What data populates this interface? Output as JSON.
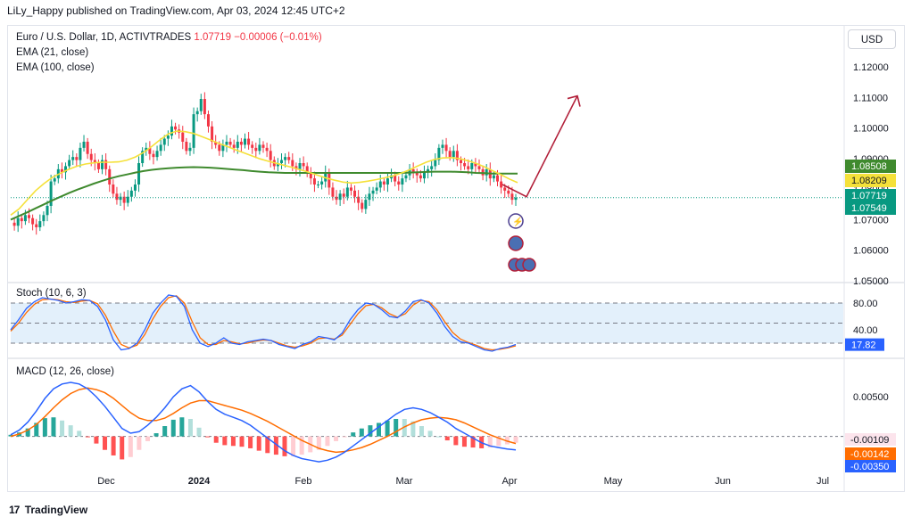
{
  "header": {
    "publisher": "LiLy_Happy published on TradingView.com, Apr 03, 2024 12:45 UTC+2"
  },
  "legend": {
    "symbol": "Euro / U.S. Dollar, 1D, ACTIVTRADES",
    "last": "1.07719",
    "change": "−0.00006 (−0.01%)",
    "ema21": "EMA (21, close)",
    "ema100": "EMA (100, close)",
    "stoch": "Stoch (10, 6, 3)",
    "macd": "MACD (12, 26, close)"
  },
  "currency_button": "USD",
  "footer": {
    "brand": "TradingView",
    "logo": "17"
  },
  "colors": {
    "up": "#089981",
    "down": "#f23645",
    "ema21": "#f5e13a",
    "ema100": "#3f8a2e",
    "stoch_k": "#2962ff",
    "stoch_d": "#ff6d00",
    "macd": "#2962ff",
    "signal": "#ff6d00",
    "arrow": "#b2203a"
  },
  "chart_data": [
    {
      "type": "candlestick",
      "title": "Euro / U.S. Dollar, 1D, ACTIVTRADES",
      "x_labels": [
        "Dec",
        "2024",
        "Feb",
        "Mar",
        "Apr",
        "May",
        "Jun",
        "Jul"
      ],
      "y_ticks": [
        "1.12000",
        "1.11000",
        "1.10000",
        "1.09000",
        "1.08000",
        "1.07000",
        "1.06000",
        "1.05000"
      ],
      "ylim": [
        1.05,
        1.12
      ],
      "price_labels": [
        {
          "text": "1.08508",
          "value": 1.08508,
          "color": "#3f8a2e"
        },
        {
          "text": "1.08209",
          "value": 1.08209,
          "color": "#f5e13a"
        },
        {
          "text": "1.07719",
          "value": 1.07719,
          "color": "#089981"
        },
        {
          "text": "1.07549",
          "value": 1.07549,
          "color": "#089981"
        }
      ],
      "close_series": [
        1.069,
        1.068,
        1.0705,
        1.0695,
        1.0715,
        1.0705,
        1.0685,
        1.0675,
        1.0695,
        1.0715,
        1.0745,
        1.0825,
        1.0835,
        1.0865,
        1.0855,
        1.0875,
        1.0895,
        1.0905,
        1.0895,
        1.0935,
        1.0955,
        1.0915,
        1.0895,
        1.0885,
        1.0865,
        1.0895,
        1.0865,
        1.0815,
        1.0785,
        1.0765,
        1.0775,
        1.0755,
        1.0775,
        1.0795,
        1.0815,
        1.0885,
        1.0925,
        1.0935,
        1.0915,
        1.0905,
        1.0925,
        1.0945,
        1.0965,
        1.0975,
        1.1005,
        1.0995,
        1.0985,
        1.0955,
        1.0925,
        1.0935,
        1.1045,
        1.1055,
        1.1095,
        1.1045,
        1.1005,
        1.0955,
        1.0945,
        1.0925,
        1.0945,
        1.0955,
        1.0945,
        1.0935,
        1.0955,
        1.0945,
        1.0965,
        1.0945,
        1.0935,
        1.0925,
        1.0945,
        1.0935,
        1.0925,
        1.0895,
        1.0875,
        1.0885,
        1.0895,
        1.0905,
        1.0895,
        1.0875,
        1.0865,
        1.0885,
        1.0875,
        1.0855,
        1.0835,
        1.0815,
        1.0815,
        1.0825,
        1.0855,
        1.0805,
        1.0775,
        1.0765,
        1.0785,
        1.0775,
        1.0805,
        1.0795,
        1.0775,
        1.0755,
        1.0735,
        1.0765,
        1.0785,
        1.0795,
        1.0805,
        1.0825,
        1.0815,
        1.0835,
        1.0845,
        1.0825,
        1.0815,
        1.0835,
        1.0845,
        1.0865,
        1.0855,
        1.0845,
        1.0835,
        1.0855,
        1.0865,
        1.0875,
        1.0895,
        1.0935,
        1.0945,
        1.0925,
        1.0905,
        1.0925,
        1.0895,
        1.0885,
        1.0875,
        1.0865,
        1.0885,
        1.0875,
        1.0865,
        1.0845,
        1.0865,
        1.0835,
        1.0845,
        1.0825,
        1.0805,
        1.0795,
        1.0785,
        1.0765,
        1.0772
      ],
      "ema21": [
        1.0715,
        1.0735,
        1.0765,
        1.0795,
        1.0818,
        1.0838,
        1.0852,
        1.0865,
        1.0875,
        1.0882,
        1.0886,
        1.0888,
        1.0888,
        1.0889,
        1.0895,
        1.0905,
        1.092,
        1.094,
        1.0962,
        1.0981,
        1.099,
        1.0988,
        1.0982,
        1.0972,
        1.0961,
        1.095,
        1.094,
        1.0929,
        1.0919,
        1.0909,
        1.0899,
        1.0891,
        1.0884,
        1.0877,
        1.087,
        1.0862,
        1.0854,
        1.0845,
        1.0836,
        1.0829,
        1.0823,
        1.082,
        1.0822,
        1.0826,
        1.0831,
        1.0837,
        1.0843,
        1.0852,
        1.0863,
        1.0876,
        1.0888,
        1.0897,
        1.0902,
        1.0903,
        1.09,
        1.0893,
        1.0884,
        1.0873,
        1.086,
        1.0847,
        1.0833,
        1.0821
      ],
      "ema100": [
        1.07,
        1.0712,
        1.0724,
        1.0737,
        1.075,
        1.0763,
        1.0775,
        1.0787,
        1.0798,
        1.0808,
        1.0818,
        1.0827,
        1.0835,
        1.0842,
        1.0848,
        1.0854,
        1.0859,
        1.0863,
        1.0866,
        1.0868,
        1.087,
        1.0871,
        1.0872,
        1.0871,
        1.087,
        1.0868,
        1.0866,
        1.0864,
        1.0862,
        1.0859,
        1.0857,
        1.0855,
        1.0854,
        1.0853,
        1.0853,
        1.0853,
        1.0853,
        1.0853,
        1.0853,
        1.0853,
        1.0853,
        1.0853,
        1.0853,
        1.0853,
        1.0853,
        1.0853,
        1.0853,
        1.0853,
        1.0854,
        1.0855,
        1.0856,
        1.0857,
        1.0857,
        1.0857,
        1.0856,
        1.0855,
        1.0853,
        1.0852,
        1.0851,
        1.0851,
        1.0851,
        1.0851
      ],
      "projection_arrow": [
        {
          "x": "Apr",
          "y": 1.0775
        },
        {
          "x": "May",
          "y": 1.1105
        }
      ]
    },
    {
      "type": "line",
      "title": "Stoch (10, 6, 3)",
      "y_ticks": [
        "80.00",
        "40.00"
      ],
      "ylim": [
        0,
        100
      ],
      "levels": [
        80,
        50,
        20
      ],
      "value_labels": [
        {
          "text": "17.82",
          "value": 17.82
        }
      ],
      "k": [
        40,
        55,
        72,
        82,
        88,
        86,
        84,
        80,
        82,
        85,
        84,
        75,
        55,
        25,
        10,
        12,
        20,
        40,
        65,
        80,
        92,
        90,
        75,
        40,
        20,
        15,
        20,
        28,
        20,
        18,
        22,
        24,
        26,
        24,
        18,
        15,
        12,
        18,
        22,
        30,
        28,
        25,
        35,
        55,
        70,
        80,
        78,
        70,
        60,
        58,
        68,
        82,
        85,
        80,
        65,
        45,
        30,
        22,
        20,
        15,
        10,
        8,
        12,
        14,
        18
      ],
      "d": [
        38,
        50,
        66,
        78,
        85,
        86,
        85,
        82,
        81,
        83,
        84,
        79,
        62,
        38,
        18,
        13,
        17,
        33,
        56,
        75,
        88,
        91,
        80,
        52,
        28,
        18,
        18,
        24,
        22,
        19,
        20,
        23,
        25,
        24,
        20,
        16,
        14,
        16,
        20,
        27,
        28,
        26,
        32,
        48,
        64,
        76,
        78,
        73,
        64,
        59,
        64,
        77,
        84,
        82,
        70,
        52,
        36,
        26,
        21,
        17,
        12,
        10,
        11,
        13,
        16
      ]
    },
    {
      "type": "line+bar",
      "title": "MACD (12, 26, close)",
      "y_ticks": [
        "0.00500",
        "0.00000"
      ],
      "ylim": [
        -0.0042,
        0.0095
      ],
      "value_labels": [
        {
          "text": "-0.00109",
          "value": -0.00109
        },
        {
          "text": "-0.00142",
          "value": -0.00142
        },
        {
          "text": "-0.00350",
          "value": -0.0035
        }
      ],
      "macd": [
        0.0002,
        0.0008,
        0.0018,
        0.0032,
        0.0048,
        0.006,
        0.0066,
        0.0068,
        0.0066,
        0.006,
        0.005,
        0.0038,
        0.0024,
        0.001,
        0.0004,
        0.0006,
        0.0014,
        0.0024,
        0.0036,
        0.005,
        0.006,
        0.0064,
        0.0056,
        0.0044,
        0.0034,
        0.0028,
        0.0024,
        0.002,
        0.0014,
        0.0006,
        -0.0002,
        -0.001,
        -0.0018,
        -0.0024,
        -0.0028,
        -0.003,
        -0.0032,
        -0.003,
        -0.0026,
        -0.002,
        -0.0012,
        -0.0004,
        0.0004,
        0.0012,
        0.002,
        0.0028,
        0.0034,
        0.0036,
        0.0034,
        0.003,
        0.0024,
        0.0018,
        0.001,
        0.0004,
        -0.0002,
        -0.0008,
        -0.0012,
        -0.0014,
        -0.0016,
        -0.0017
      ],
      "signal": [
        0.0,
        0.0003,
        0.0008,
        0.0015,
        0.0025,
        0.0036,
        0.0046,
        0.0054,
        0.0059,
        0.0061,
        0.0059,
        0.0055,
        0.0048,
        0.0039,
        0.003,
        0.0023,
        0.002,
        0.002,
        0.0023,
        0.0029,
        0.0036,
        0.0042,
        0.0045,
        0.0045,
        0.0042,
        0.0039,
        0.0036,
        0.0033,
        0.0029,
        0.0024,
        0.0019,
        0.0013,
        0.0007,
        0.0001,
        -0.0005,
        -0.001,
        -0.0015,
        -0.0018,
        -0.002,
        -0.0019,
        -0.0017,
        -0.0014,
        -0.001,
        -0.0005,
        0.0,
        0.0006,
        0.0012,
        0.0017,
        0.0021,
        0.0023,
        0.0024,
        0.0023,
        0.0021,
        0.0017,
        0.0012,
        0.0007,
        0.0002,
        -0.0002,
        -0.0006,
        -0.0009
      ]
    }
  ]
}
